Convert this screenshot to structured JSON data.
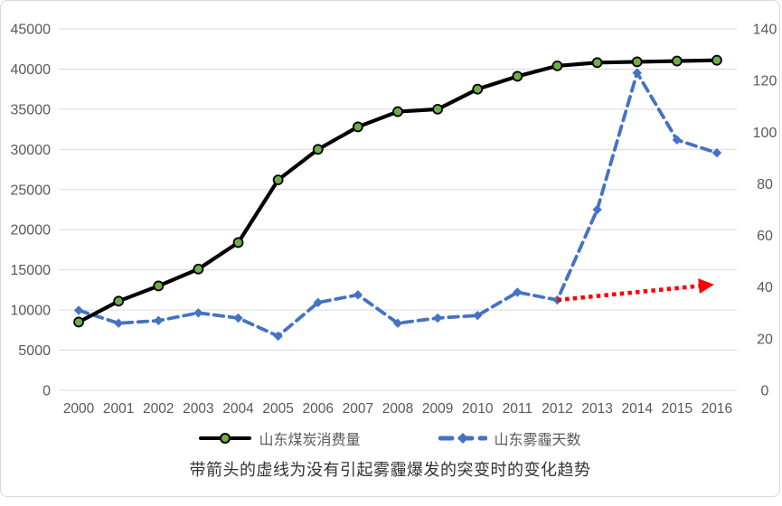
{
  "window": {
    "background": "#ffffff",
    "frame_border_color": "#d9d9d9"
  },
  "colors": {
    "coal_line": "#000000",
    "coal_marker_fill": "#70ad47",
    "coal_marker_outline": "#000000",
    "haze_line": "#4472c4",
    "arrow_red": "#ff0000",
    "gridline": "#d9d9d9",
    "axis_label": "#595959",
    "caption_text": "#333333"
  },
  "chart_data": {
    "type": "line",
    "categories": [
      "2000",
      "2001",
      "2002",
      "2003",
      "2004",
      "2005",
      "2006",
      "2007",
      "2008",
      "2009",
      "2010",
      "2011",
      "2012",
      "2013",
      "2014",
      "2015",
      "2016"
    ],
    "series": [
      {
        "name": "山东煤炭消费量",
        "axis": "left",
        "line_style": "solid",
        "marker": "circle",
        "values": [
          8500,
          11100,
          13000,
          15100,
          18400,
          26200,
          30000,
          32800,
          34700,
          35000,
          37500,
          39100,
          40400,
          40800,
          40900,
          41000,
          41100
        ]
      },
      {
        "name": "山东雾霾天数",
        "axis": "right",
        "line_style": "dashed",
        "marker": "diamond",
        "values": [
          31,
          26,
          27,
          30,
          28,
          21,
          34,
          37,
          26,
          28,
          29,
          38,
          35,
          70,
          123,
          97,
          92
        ]
      }
    ],
    "left_axis": {
      "min": 0,
      "max": 45000,
      "step": 5000,
      "tick_labels": [
        "0",
        "5000",
        "10000",
        "15000",
        "20000",
        "25000",
        "30000",
        "35000",
        "40000",
        "45000"
      ]
    },
    "right_axis": {
      "min": 0,
      "max": 140,
      "step": 20,
      "tick_labels": [
        "0",
        "20",
        "40",
        "60",
        "80",
        "100",
        "120",
        "140"
      ]
    },
    "grid": true,
    "legend_position": "bottom",
    "annotation_arrow": {
      "axis": "right",
      "style": "dotted",
      "start_year": "2012",
      "start_value": 35,
      "end_year": "2016",
      "end_value": 41
    }
  },
  "legend": {
    "items": [
      {
        "label": "山东煤炭消费量"
      },
      {
        "label": "山东雾霾天数"
      }
    ]
  },
  "caption": "带箭头的虚线为没有引起雾霾爆发的突变时的变化趋势"
}
